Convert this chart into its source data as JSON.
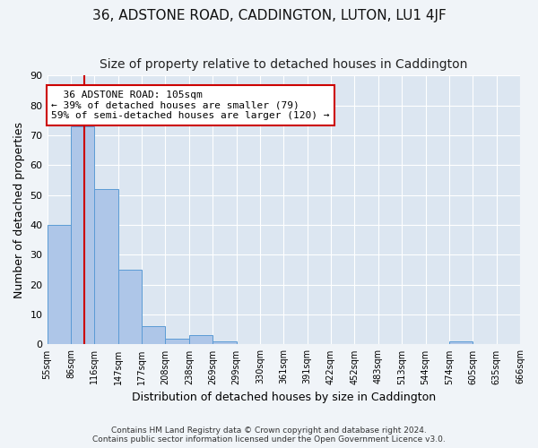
{
  "title1": "36, ADSTONE ROAD, CADDINGTON, LUTON, LU1 4JF",
  "title2": "Size of property relative to detached houses in Caddington",
  "xlabel": "Distribution of detached houses by size in Caddington",
  "ylabel": "Number of detached properties",
  "footer1": "Contains HM Land Registry data © Crown copyright and database right 2024.",
  "footer2": "Contains public sector information licensed under the Open Government Licence v3.0.",
  "annotation_line1": "36 ADSTONE ROAD: 105sqm",
  "annotation_line2": "← 39% of detached houses are smaller (79)",
  "annotation_line3": "59% of semi-detached houses are larger (120) →",
  "bar_values": [
    40,
    73,
    52,
    25,
    6,
    2,
    3,
    1,
    0,
    0,
    0,
    0,
    0,
    0,
    0,
    0,
    0,
    1,
    0,
    0
  ],
  "bin_labels": [
    "55sqm",
    "86sqm",
    "116sqm",
    "147sqm",
    "177sqm",
    "208sqm",
    "238sqm",
    "269sqm",
    "299sqm",
    "330sqm",
    "361sqm",
    "391sqm",
    "422sqm",
    "452sqm",
    "483sqm",
    "513sqm",
    "544sqm",
    "574sqm",
    "605sqm",
    "635sqm",
    "666sqm"
  ],
  "bar_color": "#aec6e8",
  "bar_edge_color": "#5b9bd5",
  "vline_x": 1.58,
  "vline_color": "#cc0000",
  "ylim_max": 90,
  "yticks": [
    0,
    10,
    20,
    30,
    40,
    50,
    60,
    70,
    80,
    90
  ],
  "background_color": "#dce6f1",
  "grid_color": "#ffffff",
  "title1_fontsize": 11,
  "title2_fontsize": 10,
  "xlabel_fontsize": 9,
  "ylabel_fontsize": 9,
  "fig_bg": "#f0f4f8"
}
